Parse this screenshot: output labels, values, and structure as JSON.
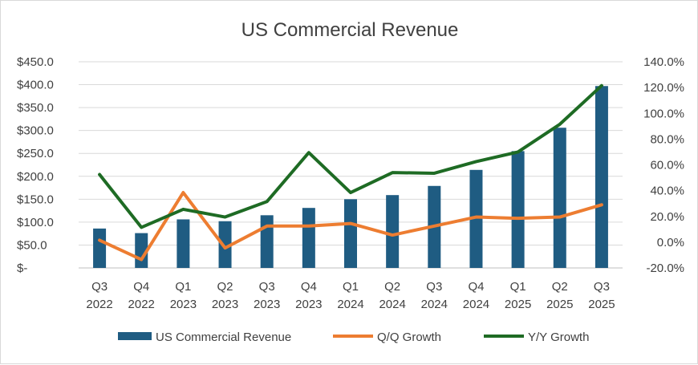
{
  "chart_data": {
    "type": "bar",
    "title": "US Commercial Revenue",
    "categories": [
      [
        "Q3",
        "2022"
      ],
      [
        "Q4",
        "2022"
      ],
      [
        "Q1",
        "2023"
      ],
      [
        "Q2",
        "2023"
      ],
      [
        "Q3",
        "2023"
      ],
      [
        "Q4",
        "2023"
      ],
      [
        "Q1",
        "2024"
      ],
      [
        "Q2",
        "2024"
      ],
      [
        "Q3",
        "2024"
      ],
      [
        "Q4",
        "2024"
      ],
      [
        "Q1",
        "2025"
      ],
      [
        "Q2",
        "2025"
      ],
      [
        "Q3",
        "2025"
      ]
    ],
    "left_axis": {
      "ylim": [
        0,
        450
      ],
      "ticks": [
        0,
        50,
        100,
        150,
        200,
        250,
        300,
        350,
        400,
        450
      ],
      "tick_labels": [
        "$-",
        "$50.0",
        "$100.0",
        "$150.0",
        "$200.0",
        "$250.0",
        "$300.0",
        "$350.0",
        "$400.0",
        "$450.0"
      ]
    },
    "right_axis": {
      "ylim": [
        -20,
        140
      ],
      "ticks": [
        -20,
        0,
        20,
        40,
        60,
        80,
        100,
        120,
        140
      ],
      "tick_labels": [
        "-20.0%",
        "0.0%",
        "20.0%",
        "40.0%",
        "60.0%",
        "80.0%",
        "100.0%",
        "120.0%",
        "140.0%"
      ]
    },
    "grid": true,
    "legend_position": "bottom",
    "series": [
      {
        "name": "US Commercial Revenue",
        "type": "bar",
        "axis": "left",
        "color": "#1f5c82",
        "values": [
          86,
          76,
          106,
          102,
          115,
          131,
          150,
          159,
          179,
          214,
          255,
          306,
          397
        ]
      },
      {
        "name": "Q/Q Growth",
        "type": "line",
        "axis": "right",
        "color": "#ed7d31",
        "values": [
          1.5,
          -13.5,
          38.5,
          -4.5,
          12.5,
          12.5,
          14.5,
          5.5,
          12.5,
          19.5,
          18.5,
          19.5,
          29
        ]
      },
      {
        "name": "Y/Y Growth",
        "type": "line",
        "axis": "right",
        "color": "#1e6b24",
        "values": [
          52.5,
          11.5,
          25.5,
          19.5,
          31.5,
          69.5,
          38.5,
          54,
          53.5,
          62.5,
          70,
          91.5,
          121.5
        ]
      }
    ]
  }
}
